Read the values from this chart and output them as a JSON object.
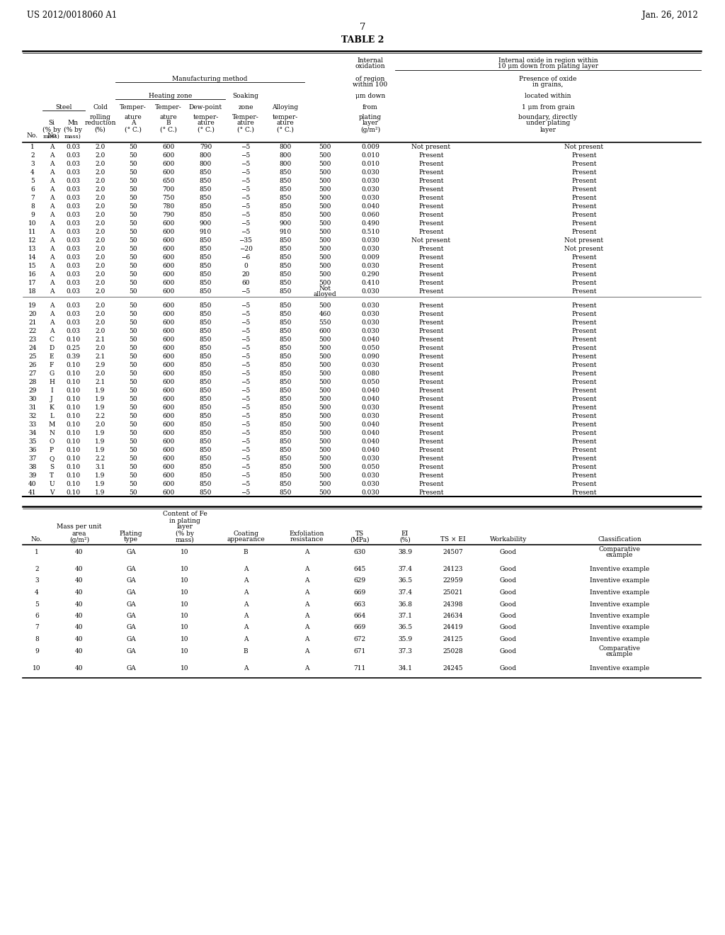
{
  "header_left": "US 2012/0018060 A1",
  "header_right": "Jan. 26, 2012",
  "page_number": "7",
  "table_title": "TABLE 2",
  "bg": "#ffffff",
  "t1_rows": [
    [
      "1",
      "A",
      "0.03",
      "2.0",
      "50",
      "600",
      "790",
      "−5",
      "800",
      "500",
      "0.009",
      "Not present",
      "Not present"
    ],
    [
      "2",
      "A",
      "0.03",
      "2.0",
      "50",
      "600",
      "800",
      "−5",
      "800",
      "500",
      "0.010",
      "Present",
      "Present"
    ],
    [
      "3",
      "A",
      "0.03",
      "2.0",
      "50",
      "600",
      "800",
      "−5",
      "800",
      "500",
      "0.010",
      "Present",
      "Present"
    ],
    [
      "4",
      "A",
      "0.03",
      "2.0",
      "50",
      "600",
      "850",
      "−5",
      "850",
      "500",
      "0.030",
      "Present",
      "Present"
    ],
    [
      "5",
      "A",
      "0.03",
      "2.0",
      "50",
      "650",
      "850",
      "−5",
      "850",
      "500",
      "0.030",
      "Present",
      "Present"
    ],
    [
      "6",
      "A",
      "0.03",
      "2.0",
      "50",
      "700",
      "850",
      "−5",
      "850",
      "500",
      "0.030",
      "Present",
      "Present"
    ],
    [
      "7",
      "A",
      "0.03",
      "2.0",
      "50",
      "750",
      "850",
      "−5",
      "850",
      "500",
      "0.030",
      "Present",
      "Present"
    ],
    [
      "8",
      "A",
      "0.03",
      "2.0",
      "50",
      "780",
      "850",
      "−5",
      "850",
      "500",
      "0.040",
      "Present",
      "Present"
    ],
    [
      "9",
      "A",
      "0.03",
      "2.0",
      "50",
      "790",
      "850",
      "−5",
      "850",
      "500",
      "0.060",
      "Present",
      "Present"
    ],
    [
      "10",
      "A",
      "0.03",
      "2.0",
      "50",
      "600",
      "900",
      "−5",
      "900",
      "500",
      "0.490",
      "Present",
      "Present"
    ],
    [
      "11",
      "A",
      "0.03",
      "2.0",
      "50",
      "600",
      "910",
      "−5",
      "910",
      "500",
      "0.510",
      "Present",
      "Present"
    ],
    [
      "12",
      "A",
      "0.03",
      "2.0",
      "50",
      "600",
      "850",
      "−35",
      "850",
      "500",
      "0.030",
      "Not present",
      "Not present"
    ],
    [
      "13",
      "A",
      "0.03",
      "2.0",
      "50",
      "600",
      "850",
      "−20",
      "850",
      "500",
      "0.030",
      "Present",
      "Not present"
    ],
    [
      "14",
      "A",
      "0.03",
      "2.0",
      "50",
      "600",
      "850",
      "−6",
      "850",
      "500",
      "0.009",
      "Present",
      "Present"
    ],
    [
      "15",
      "A",
      "0.03",
      "2.0",
      "50",
      "600",
      "850",
      "0",
      "850",
      "500",
      "0.030",
      "Present",
      "Present"
    ],
    [
      "16",
      "A",
      "0.03",
      "2.0",
      "50",
      "600",
      "850",
      "20",
      "850",
      "500",
      "0.290",
      "Present",
      "Present"
    ],
    [
      "17",
      "A",
      "0.03",
      "2.0",
      "50",
      "600",
      "850",
      "60",
      "850",
      "500",
      "0.410",
      "Present",
      "Present"
    ],
    [
      "18",
      "A",
      "0.03",
      "2.0",
      "50",
      "600",
      "850",
      "−5",
      "850",
      "Not\nalloyed",
      "0.030",
      "Present",
      "Present"
    ],
    [
      "19",
      "A",
      "0.03",
      "2.0",
      "50",
      "600",
      "850",
      "−5",
      "850",
      "500",
      "0.030",
      "Present",
      "Present"
    ],
    [
      "20",
      "A",
      "0.03",
      "2.0",
      "50",
      "600",
      "850",
      "−5",
      "850",
      "460",
      "0.030",
      "Present",
      "Present"
    ],
    [
      "21",
      "A",
      "0.03",
      "2.0",
      "50",
      "600",
      "850",
      "−5",
      "850",
      "550",
      "0.030",
      "Present",
      "Present"
    ],
    [
      "22",
      "A",
      "0.03",
      "2.0",
      "50",
      "600",
      "850",
      "−5",
      "850",
      "600",
      "0.030",
      "Present",
      "Present"
    ],
    [
      "23",
      "C",
      "0.10",
      "2.1",
      "50",
      "600",
      "850",
      "−5",
      "850",
      "500",
      "0.040",
      "Present",
      "Present"
    ],
    [
      "24",
      "D",
      "0.25",
      "2.0",
      "50",
      "600",
      "850",
      "−5",
      "850",
      "500",
      "0.050",
      "Present",
      "Present"
    ],
    [
      "25",
      "E",
      "0.39",
      "2.1",
      "50",
      "600",
      "850",
      "−5",
      "850",
      "500",
      "0.090",
      "Present",
      "Present"
    ],
    [
      "26",
      "F",
      "0.10",
      "2.9",
      "50",
      "600",
      "850",
      "−5",
      "850",
      "500",
      "0.030",
      "Present",
      "Present"
    ],
    [
      "27",
      "G",
      "0.10",
      "2.0",
      "50",
      "600",
      "850",
      "−5",
      "850",
      "500",
      "0.080",
      "Present",
      "Present"
    ],
    [
      "28",
      "H",
      "0.10",
      "2.1",
      "50",
      "600",
      "850",
      "−5",
      "850",
      "500",
      "0.050",
      "Present",
      "Present"
    ],
    [
      "29",
      "I",
      "0.10",
      "1.9",
      "50",
      "600",
      "850",
      "−5",
      "850",
      "500",
      "0.040",
      "Present",
      "Present"
    ],
    [
      "30",
      "J",
      "0.10",
      "1.9",
      "50",
      "600",
      "850",
      "−5",
      "850",
      "500",
      "0.040",
      "Present",
      "Present"
    ],
    [
      "31",
      "K",
      "0.10",
      "1.9",
      "50",
      "600",
      "850",
      "−5",
      "850",
      "500",
      "0.030",
      "Present",
      "Present"
    ],
    [
      "32",
      "L",
      "0.10",
      "2.2",
      "50",
      "600",
      "850",
      "−5",
      "850",
      "500",
      "0.030",
      "Present",
      "Present"
    ],
    [
      "33",
      "M",
      "0.10",
      "2.0",
      "50",
      "600",
      "850",
      "−5",
      "850",
      "500",
      "0.040",
      "Present",
      "Present"
    ],
    [
      "34",
      "N",
      "0.10",
      "1.9",
      "50",
      "600",
      "850",
      "−5",
      "850",
      "500",
      "0.040",
      "Present",
      "Present"
    ],
    [
      "35",
      "O",
      "0.10",
      "1.9",
      "50",
      "600",
      "850",
      "−5",
      "850",
      "500",
      "0.040",
      "Present",
      "Present"
    ],
    [
      "36",
      "P",
      "0.10",
      "1.9",
      "50",
      "600",
      "850",
      "−5",
      "850",
      "500",
      "0.040",
      "Present",
      "Present"
    ],
    [
      "37",
      "Q",
      "0.10",
      "2.2",
      "50",
      "600",
      "850",
      "−5",
      "850",
      "500",
      "0.030",
      "Present",
      "Present"
    ],
    [
      "38",
      "S",
      "0.10",
      "3.1",
      "50",
      "600",
      "850",
      "−5",
      "850",
      "500",
      "0.050",
      "Present",
      "Present"
    ],
    [
      "39",
      "T",
      "0.10",
      "1.9",
      "50",
      "600",
      "850",
      "−5",
      "850",
      "500",
      "0.030",
      "Present",
      "Present"
    ],
    [
      "40",
      "U",
      "0.10",
      "1.9",
      "50",
      "600",
      "850",
      "−5",
      "850",
      "500",
      "0.030",
      "Present",
      "Present"
    ],
    [
      "41",
      "V",
      "0.10",
      "1.9",
      "50",
      "600",
      "850",
      "−5",
      "850",
      "500",
      "0.030",
      "Present",
      "Present"
    ]
  ],
  "t2_rows": [
    [
      "1",
      "40",
      "GA",
      "10",
      "B",
      "A",
      "630",
      "38.9",
      "24507",
      "Good",
      "Comparative\nexample"
    ],
    [
      "2",
      "40",
      "GA",
      "10",
      "A",
      "A",
      "645",
      "37.4",
      "24123",
      "Good",
      "Inventive example"
    ],
    [
      "3",
      "40",
      "GA",
      "10",
      "A",
      "A",
      "629",
      "36.5",
      "22959",
      "Good",
      "Inventive example"
    ],
    [
      "4",
      "40",
      "GA",
      "10",
      "A",
      "A",
      "669",
      "37.4",
      "25021",
      "Good",
      "Inventive example"
    ],
    [
      "5",
      "40",
      "GA",
      "10",
      "A",
      "A",
      "663",
      "36.8",
      "24398",
      "Good",
      "Inventive example"
    ],
    [
      "6",
      "40",
      "GA",
      "10",
      "A",
      "A",
      "664",
      "37.1",
      "24634",
      "Good",
      "Inventive example"
    ],
    [
      "7",
      "40",
      "GA",
      "10",
      "A",
      "A",
      "669",
      "36.5",
      "24419",
      "Good",
      "Inventive example"
    ],
    [
      "8",
      "40",
      "GA",
      "10",
      "A",
      "A",
      "672",
      "35.9",
      "24125",
      "Good",
      "Inventive example"
    ],
    [
      "9",
      "40",
      "GA",
      "10",
      "B",
      "A",
      "671",
      "37.3",
      "25028",
      "Good",
      "Comparative\nexample"
    ],
    [
      "10",
      "40",
      "GA",
      "10",
      "A",
      "A",
      "711",
      "34.1",
      "24245",
      "Good",
      "Inventive example"
    ]
  ]
}
